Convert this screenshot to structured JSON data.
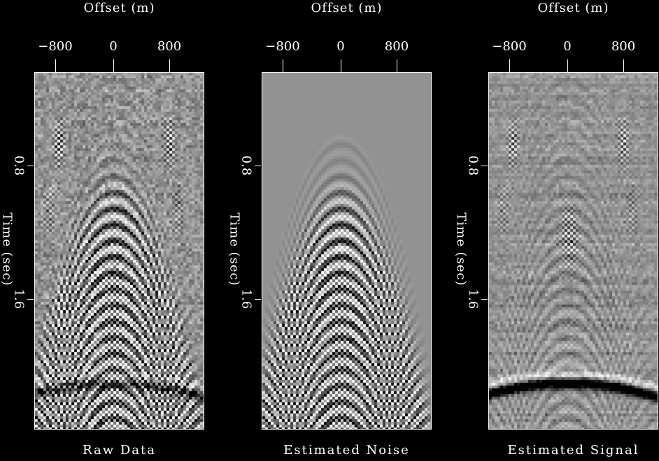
{
  "figure": {
    "background_color": "#000000",
    "text_color": "#ffffff",
    "frame_color": "#ffffff"
  },
  "chart_data": {
    "type": "heatmap",
    "layout": "three seismic shot-gather image panels side by side on black background",
    "colormap": "grayscale",
    "panels": [
      {
        "caption": "Raw Data",
        "xlabel": "Offset (m)",
        "ylabel": "Time (sec)",
        "xticks": [
          "−800",
          "0",
          "800"
        ],
        "xtick_values": [
          -800,
          0,
          800
        ],
        "yticks": [
          "0.8",
          "1.6"
        ],
        "ytick_values": [
          0.8,
          1.6
        ],
        "xlim_m": [
          -1100,
          1290
        ],
        "ylim_sec": [
          0.24,
          2.38
        ],
        "content": "hyperbolic noise cone with apex at zero offset, strong aliased checkerboard energy at later times, random speckle, weak curved reflector near 2.1 s"
      },
      {
        "caption": "Estimated Noise",
        "xlabel": "Offset (m)",
        "ylabel": "Time (sec)",
        "xticks": [
          "−800",
          "0",
          "800"
        ],
        "xtick_values": [
          -800,
          0,
          800
        ],
        "yticks": [
          "0.8",
          "1.6"
        ],
        "ytick_values": [
          0.8,
          1.6
        ],
        "xlim_m": [
          -1100,
          1290
        ],
        "ylim_sec": [
          0.24,
          2.38
        ],
        "content": "smooth background with the extracted hyperbolic noise cone and checkerboard aliasing only"
      },
      {
        "caption": "Estimated Signal",
        "xlabel": "Offset (m)",
        "ylabel": "Time (sec)",
        "xticks": [
          "−800",
          "0",
          "800"
        ],
        "xtick_values": [
          -800,
          0,
          800
        ],
        "yticks": [
          "0.8",
          "1.6"
        ],
        "ytick_values": [
          0.8,
          1.6
        ],
        "xlim_m": [
          -1100,
          1290
        ],
        "ylim_sec": [
          0.24,
          2.38
        ],
        "content": "residual: faint arcs, edge speckle patches, weak central blob, prominent curved reflector near 2.1 s"
      }
    ],
    "render": {
      "cell": 4,
      "traces": 61,
      "samples": 128,
      "apex_trace": 27.75,
      "u_scale": 27,
      "background_gray": 146,
      "gain": 118,
      "events": {
        "count": 25,
        "t0_start": 0.02,
        "t0_step": 0.045,
        "curvature": 0.47,
        "wavelet_sigma": 0.016,
        "wavelet_length": 0.042
      },
      "amps": {
        "raw_base": 0.12,
        "raw_peak": 1.0,
        "raw_onset": 0.2,
        "raw_ramp": 0.25,
        "noise_cut": 0.18,
        "noise_onset": 0.23,
        "sig_peak": 0.16,
        "sig_ramp": 0.3,
        "taper": 0.22
      },
      "checker": {
        "edge0": 0.29,
        "edge_k": 0.42,
        "rise": 3.5,
        "stripe_halfwidth": 0.105,
        "stripe_tau": 0.56
      },
      "patches": [
        [
          0.73,
          0.2,
          0.05,
          0.045,
          0.95
        ],
        [
          0.85,
          0.38,
          0.06,
          0.05,
          0.5
        ]
      ],
      "reflector": {
        "tau0": 0.868,
        "curvature": 0.028,
        "sigma": 0.01,
        "main": 1.35,
        "side": 0.5,
        "side_shift": 0.024
      },
      "blob": {
        "u1": 0.02,
        "t1": 0.475,
        "su1": 0.1,
        "st1": 0.055,
        "a1": 0.65,
        "u2": 0.0,
        "t2": 0.4,
        "su2": 0.07,
        "st2": 0.035,
        "a2": 0.3
      },
      "modes": {
        "raw": {
          "checker": 1.0,
          "patches": 1.0,
          "speckle": 0.95,
          "reflector": 0.85,
          "blob": 0,
          "streaks": 0
        },
        "noise": {
          "checker": 0.97,
          "patches": 0.0,
          "speckle": 0.0,
          "reflector": 0.0,
          "blob": 0,
          "streaks": 0
        },
        "signal": {
          "checker": 0.0,
          "patches": 0.8,
          "speckle": 0.55,
          "reflector": 1.45,
          "blob": 1,
          "streaks": 1
        }
      }
    }
  }
}
